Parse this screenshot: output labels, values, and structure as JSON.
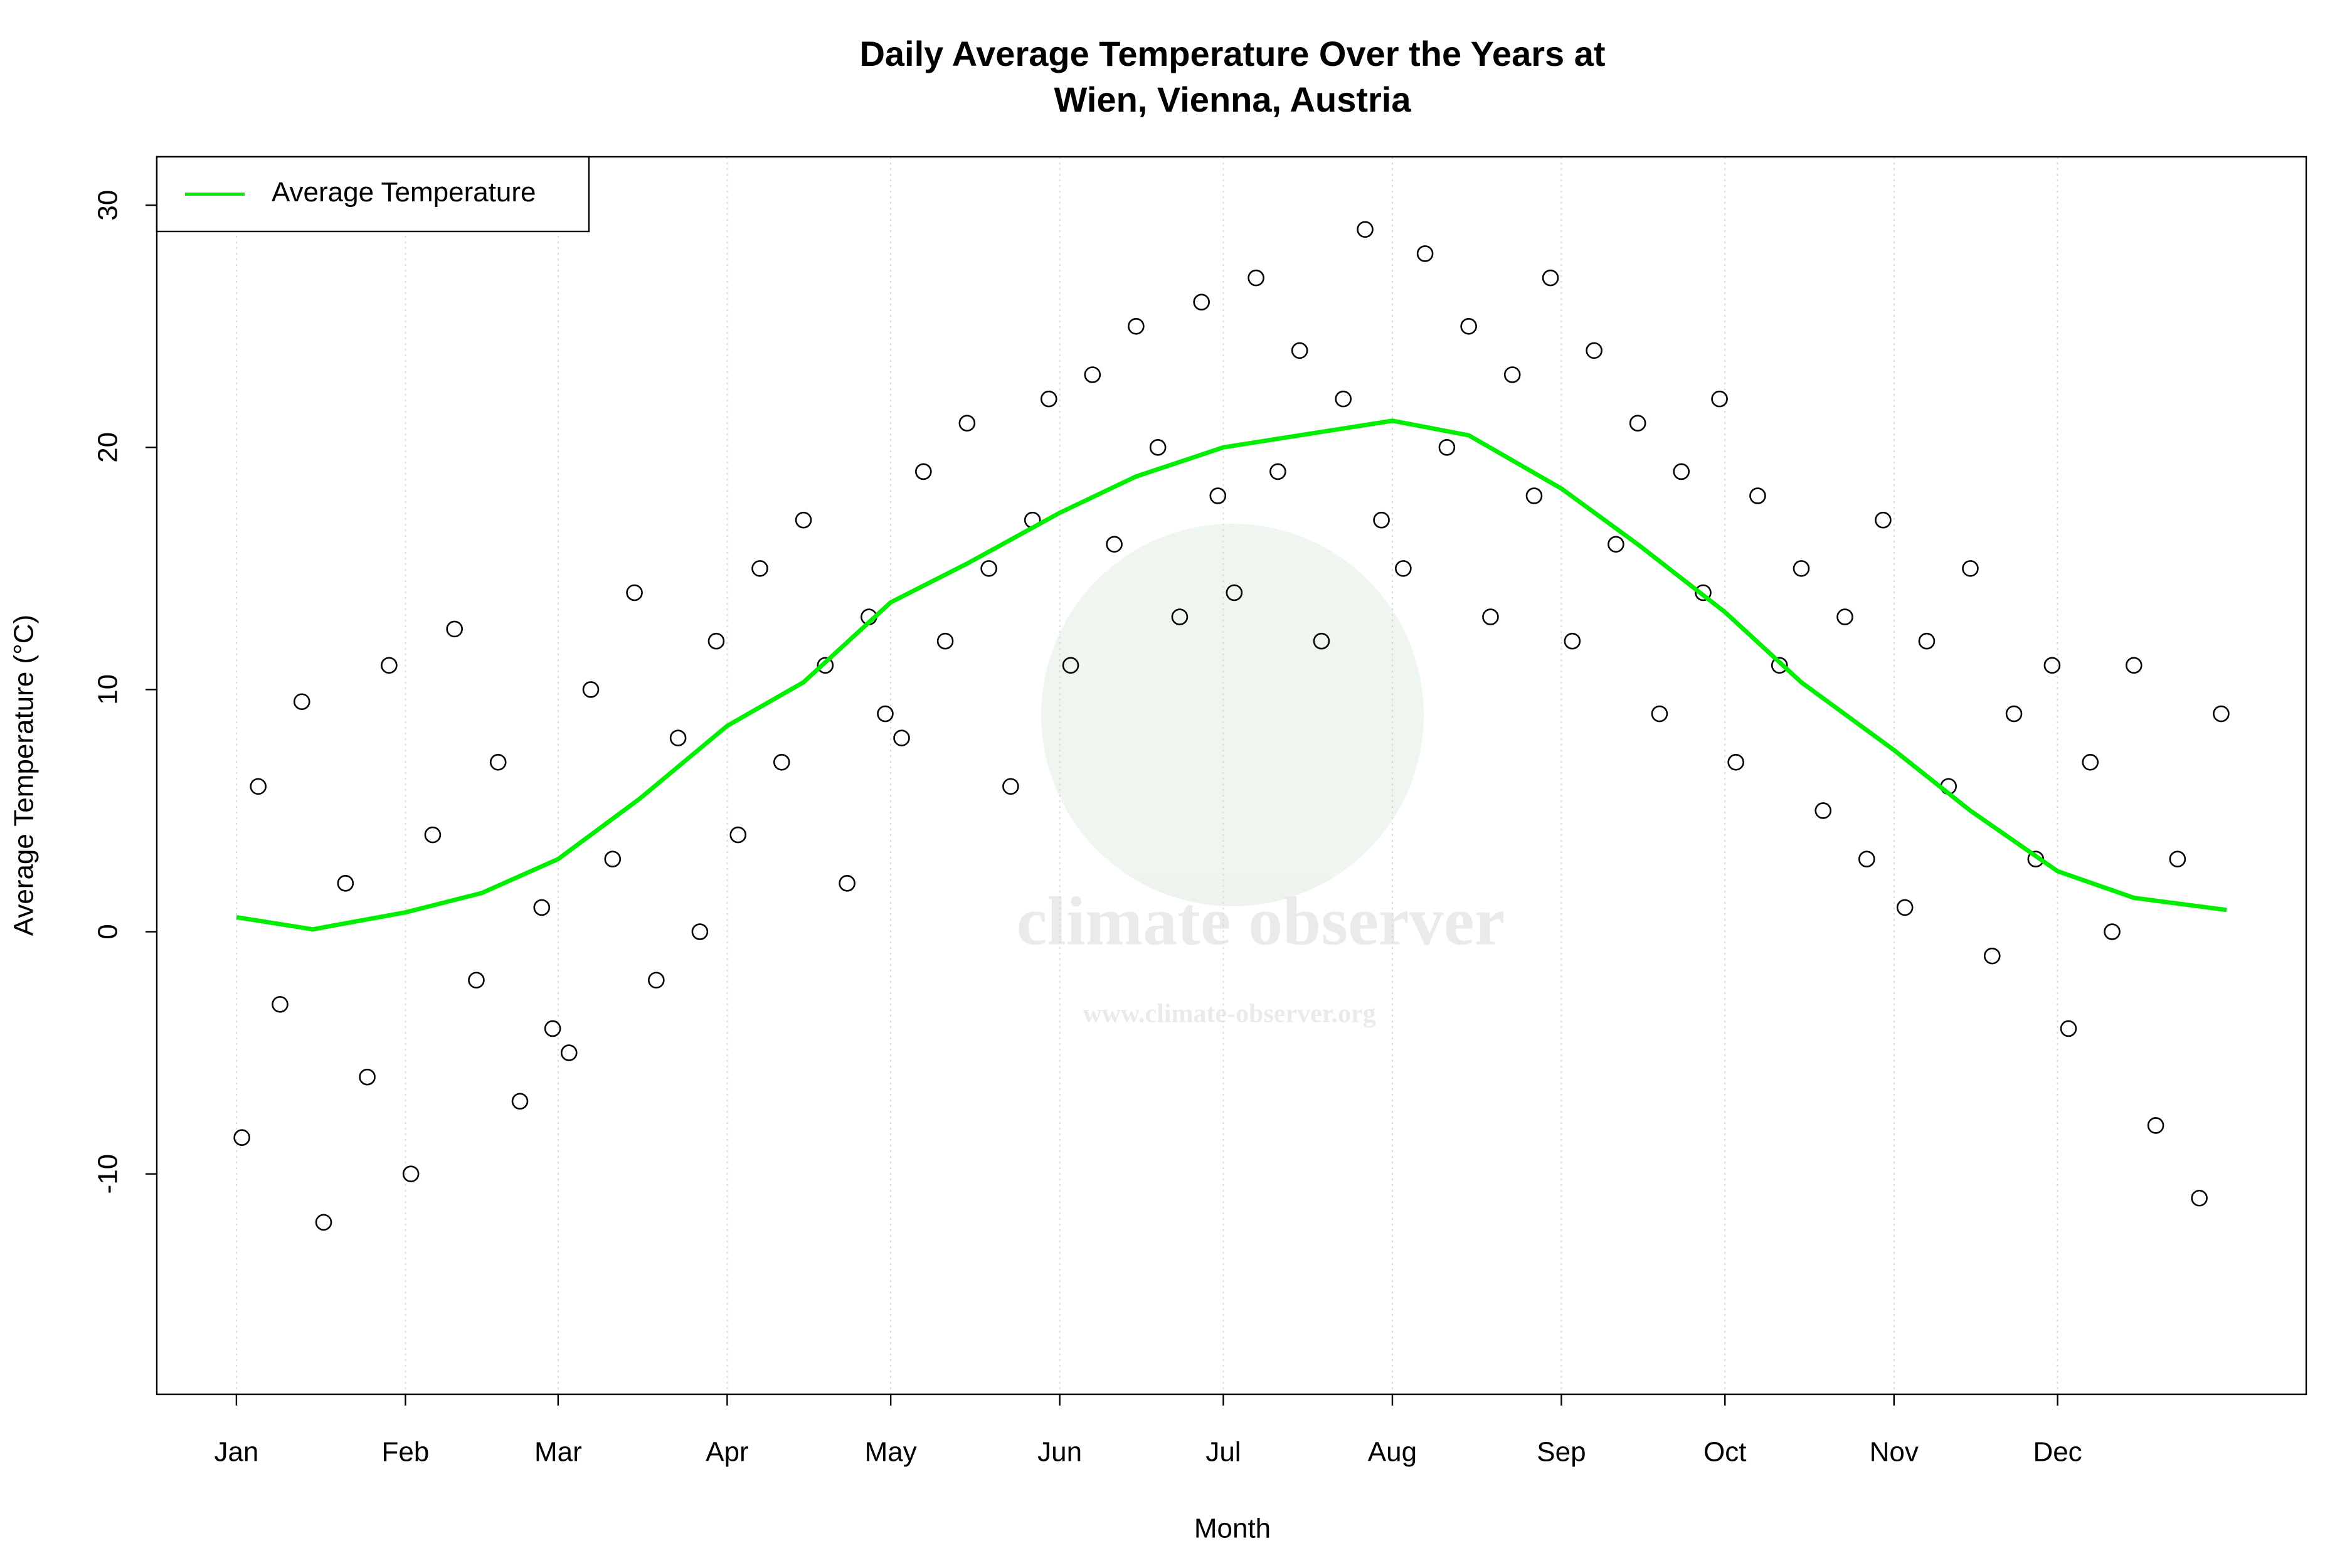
{
  "chart_data": {
    "type": "scatter",
    "title": [
      "Daily Average Temperature Over the Years at",
      "Wien, Vienna, Austria"
    ],
    "x_label": "Month",
    "y_label": "Average Temperature (°C)",
    "watermark": [
      "climate observer",
      "www.climate-observer.org"
    ],
    "xlim": [
      -13.6,
      380.6
    ],
    "xticks": [
      {
        "value": 1,
        "label": "Jan"
      },
      {
        "value": 32,
        "label": "Feb"
      },
      {
        "value": 60,
        "label": "Mar"
      },
      {
        "value": 91,
        "label": "Apr"
      },
      {
        "value": 121,
        "label": "May"
      },
      {
        "value": 152,
        "label": "Jun"
      },
      {
        "value": 182,
        "label": "Jul"
      },
      {
        "value": 213,
        "label": "Aug"
      },
      {
        "value": 244,
        "label": "Sep"
      },
      {
        "value": 274,
        "label": "Oct"
      },
      {
        "value": 305,
        "label": "Nov"
      },
      {
        "value": 335,
        "label": "Dec"
      }
    ],
    "ylim": [
      -19.1,
      32.0
    ],
    "yticks": [
      -10,
      0,
      10,
      20,
      30
    ],
    "grid": true,
    "legend": "topleft",
    "series": [
      {
        "color": "#000000",
        "marker": "circle",
        "x": [
          2,
          5,
          9,
          13,
          17,
          21,
          25,
          29,
          33,
          37,
          41,
          45,
          49,
          53,
          57,
          59,
          62,
          66,
          70,
          74,
          78,
          82,
          86,
          89,
          93,
          97,
          101,
          105,
          109,
          113,
          117,
          120,
          123,
          127,
          131,
          135,
          139,
          143,
          147,
          150,
          154,
          158,
          162,
          166,
          170,
          174,
          178,
          181,
          184,
          188,
          192,
          196,
          200,
          204,
          208,
          211,
          215,
          219,
          223,
          227,
          231,
          235,
          239,
          242,
          246,
          250,
          254,
          258,
          262,
          266,
          270,
          273,
          276,
          280,
          284,
          288,
          292,
          296,
          300,
          303,
          307,
          311,
          315,
          319,
          323,
          327,
          331,
          334,
          337,
          341,
          345,
          349,
          353,
          357,
          361,
          365
        ],
        "values": [
          -8.5,
          6,
          -3,
          9.5,
          -12,
          2,
          -6,
          11,
          -10,
          4,
          12.5,
          -2,
          7,
          -7,
          1,
          -4,
          -5,
          10,
          3,
          14,
          -2,
          8,
          0,
          12,
          4,
          15,
          7,
          17,
          11,
          2,
          13,
          9,
          8,
          19,
          12,
          21,
          15,
          6,
          17,
          22,
          11,
          23,
          16,
          25,
          20,
          13,
          26,
          18,
          14,
          27,
          19,
          24,
          12,
          22,
          29,
          17,
          15,
          28,
          20,
          25,
          13,
          23,
          18,
          27,
          12,
          24,
          16,
          21,
          9,
          19,
          14,
          22,
          7,
          18,
          11,
          15,
          5,
          13,
          3,
          17,
          1,
          12,
          6,
          15,
          -1,
          9,
          3,
          11,
          -4,
          7,
          0,
          11,
          -8,
          3,
          -11,
          9
        ]
      },
      {
        "name": "Average Temperature",
        "color": "#00ee00",
        "x": [
          1,
          15,
          32,
          46,
          60,
          75,
          91,
          105,
          121,
          135,
          152,
          166,
          182,
          196,
          213,
          227,
          244,
          258,
          274,
          288,
          305,
          319,
          335,
          349,
          366
        ],
        "values": [
          0.6,
          0.1,
          0.8,
          1.6,
          3.0,
          5.5,
          8.5,
          10.3,
          13.6,
          15.2,
          17.3,
          18.8,
          20.0,
          20.5,
          21.1,
          20.5,
          18.3,
          16.0,
          13.2,
          10.3,
          7.5,
          5.0,
          2.5,
          1.4,
          0.9
        ]
      }
    ]
  }
}
